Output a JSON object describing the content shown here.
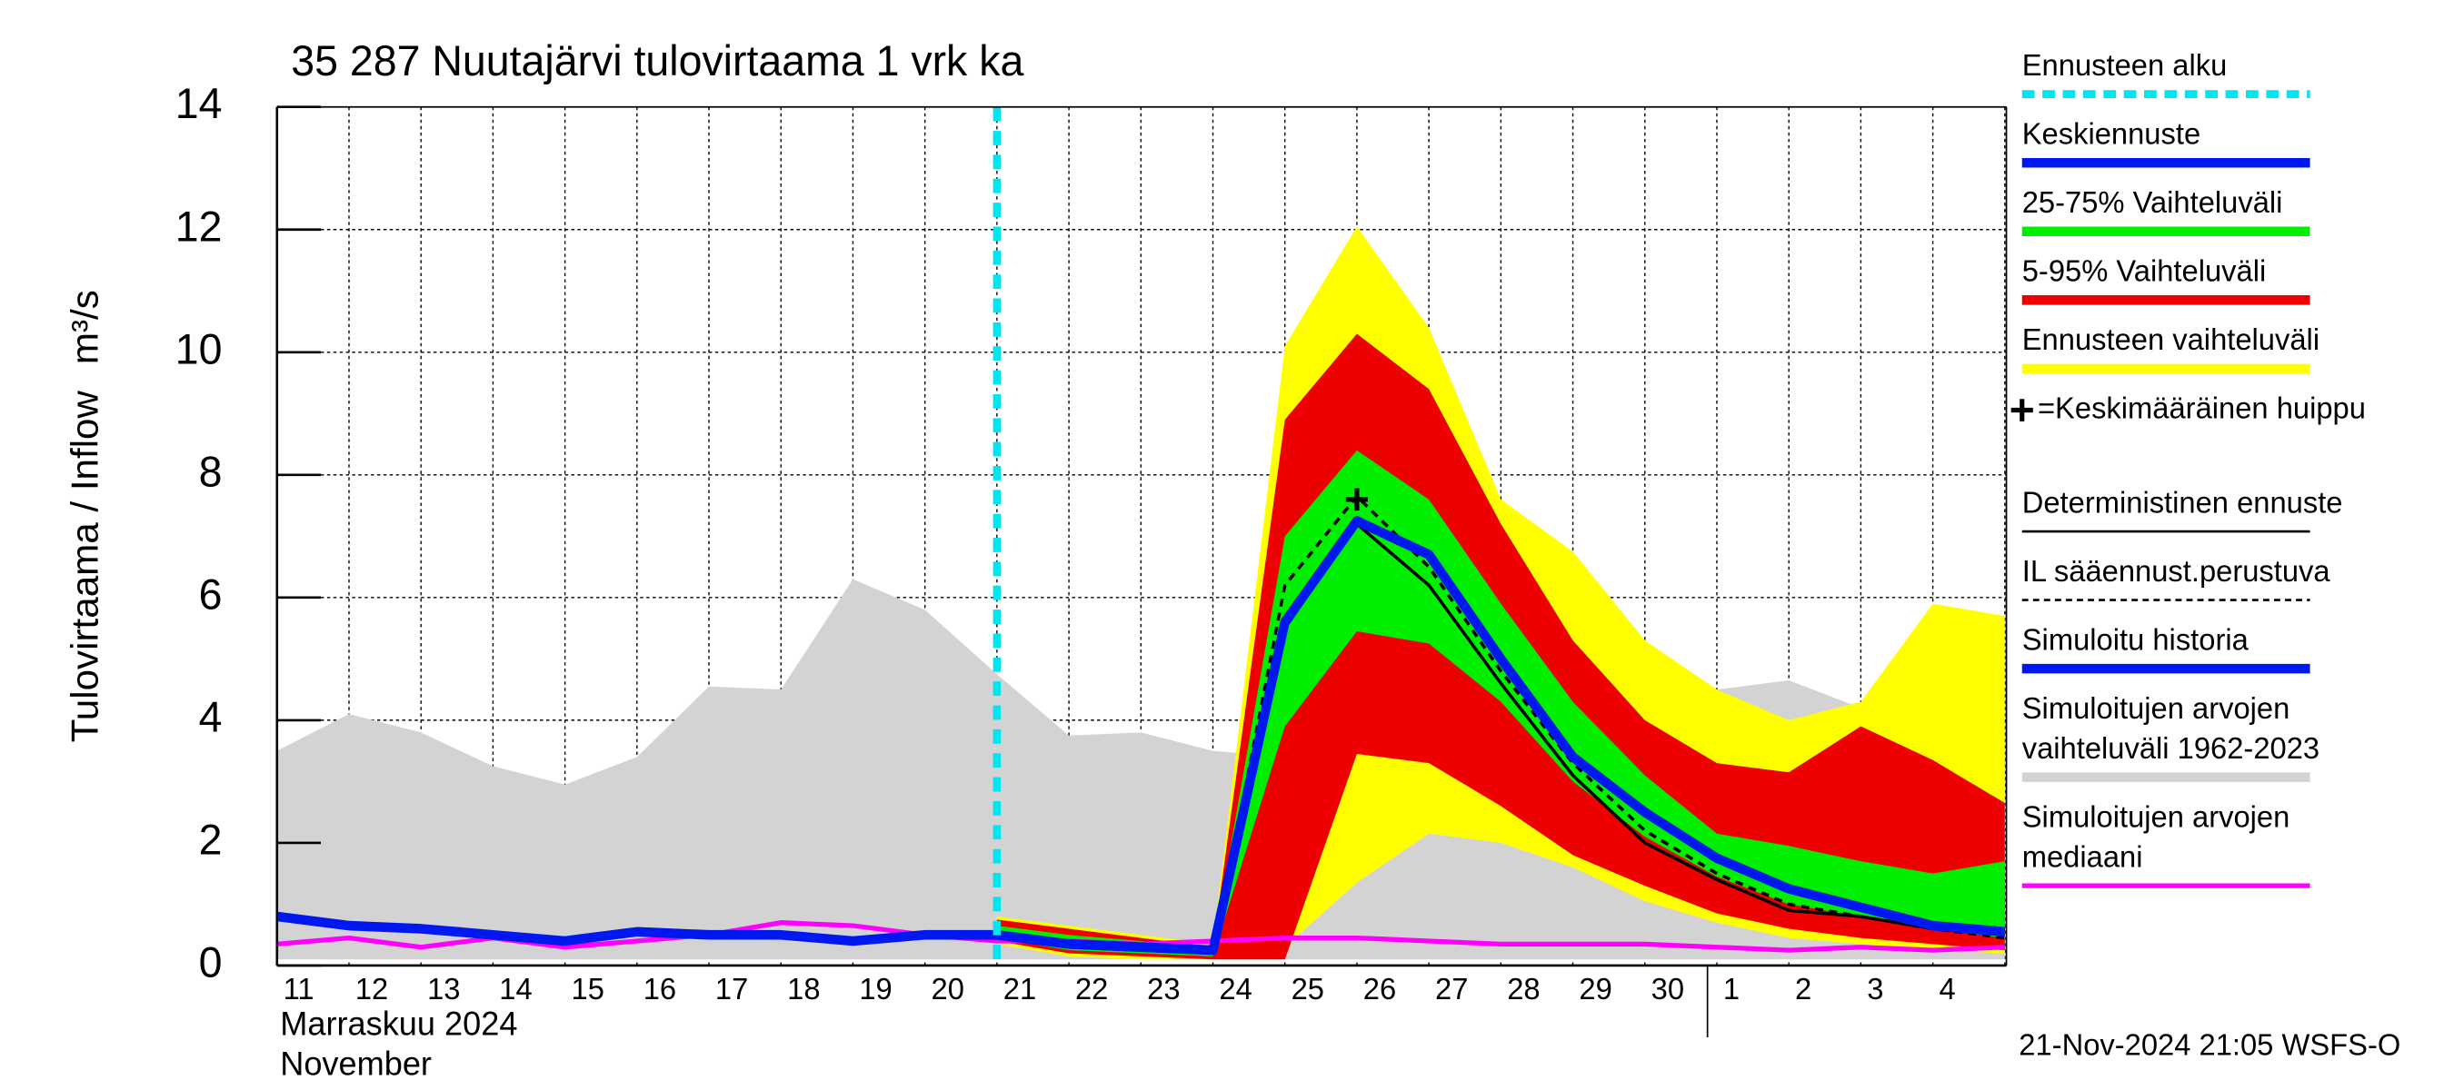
{
  "chart_data": {
    "type": "line",
    "title": "35 287 Nuutajärvi tulovirtaama 1 vrk ka",
    "y_label": "Tulovirtaama / Inflow",
    "y_unit": "m³/s",
    "x_label": [
      "Marraskuu 2024",
      "November"
    ],
    "footer": "21-Nov-2024 21:05 WSFS-O",
    "categories": [
      "11",
      "12",
      "13",
      "14",
      "15",
      "16",
      "17",
      "18",
      "19",
      "20",
      "21",
      "22",
      "23",
      "24",
      "25",
      "26",
      "27",
      "28",
      "29",
      "30",
      "1",
      "2",
      "3",
      "4",
      null
    ],
    "ylim": [
      0,
      14
    ],
    "yticks": [
      0,
      2,
      4,
      6,
      8,
      10,
      12,
      14
    ],
    "grid": true,
    "series": [
      {
        "name": "Ennusteen alku",
        "kind": "vline",
        "color": "#00e5ee",
        "dashed": true,
        "x": "21"
      },
      {
        "name": "Keskiennuste",
        "kind": "line",
        "color": "#0018f0",
        "width": 6,
        "values": [
          null,
          null,
          null,
          null,
          null,
          null,
          null,
          null,
          null,
          null,
          0.5,
          0.35,
          0.3,
          0.25,
          5.6,
          7.25,
          6.7,
          5.0,
          3.4,
          2.5,
          1.75,
          1.25,
          0.95,
          0.65,
          0.55
        ]
      },
      {
        "name": "25-75% Vaihteluväli",
        "kind": "band",
        "color": "#00ee00",
        "upper": [
          null,
          null,
          null,
          null,
          null,
          null,
          null,
          null,
          null,
          null,
          0.65,
          0.5,
          0.4,
          0.3,
          7.0,
          8.4,
          7.6,
          5.9,
          4.3,
          3.1,
          2.15,
          1.95,
          1.7,
          1.5,
          1.7
        ],
        "lower": [
          null,
          null,
          null,
          null,
          null,
          null,
          null,
          null,
          null,
          null,
          0.45,
          0.25,
          0.2,
          0.15,
          3.9,
          5.45,
          5.25,
          4.3,
          3.0,
          2.1,
          1.45,
          1.0,
          0.8,
          0.6,
          0.45
        ]
      },
      {
        "name": "5-95% Vaihteluväli",
        "kind": "band",
        "color": "#ee0000",
        "upper": [
          null,
          null,
          null,
          null,
          null,
          null,
          null,
          null,
          null,
          null,
          0.75,
          0.6,
          0.45,
          0.3,
          8.9,
          10.3,
          9.4,
          7.2,
          5.3,
          4.0,
          3.3,
          3.15,
          3.9,
          3.35,
          2.65
        ],
        "lower": [
          null,
          null,
          null,
          null,
          null,
          null,
          null,
          null,
          null,
          null,
          0.4,
          0.2,
          0.15,
          0.1,
          0.1,
          3.45,
          3.3,
          2.6,
          1.8,
          1.3,
          0.85,
          0.6,
          0.45,
          0.35,
          0.25
        ]
      },
      {
        "name": "Ennusteen vaihteluväli",
        "kind": "band",
        "color": "#ffff00",
        "upper": [
          null,
          null,
          null,
          null,
          null,
          null,
          null,
          null,
          null,
          null,
          0.8,
          0.65,
          0.5,
          0.35,
          10.1,
          12.05,
          10.4,
          7.6,
          6.75,
          5.3,
          4.5,
          4.0,
          4.3,
          5.9,
          5.7
        ],
        "lower": [
          null,
          null,
          null,
          null,
          null,
          null,
          null,
          null,
          null,
          null,
          0.35,
          0.15,
          0.1,
          0.1,
          0.3,
          1.35,
          2.15,
          2.0,
          1.6,
          1.05,
          0.7,
          0.45,
          0.35,
          0.25,
          0.2
        ]
      },
      {
        "name": "=Keskimääräinen huippu",
        "kind": "marker",
        "color": "#000000",
        "x": "26",
        "value": 7.6
      },
      {
        "name": "Deterministinen ennuste",
        "kind": "line",
        "color": "#000000",
        "width": 2,
        "values": [
          null,
          null,
          null,
          null,
          null,
          null,
          null,
          null,
          null,
          null,
          0.45,
          0.3,
          0.25,
          0.2,
          5.5,
          7.2,
          6.2,
          4.6,
          3.1,
          2.0,
          1.4,
          0.9,
          0.8,
          0.6,
          0.5
        ]
      },
      {
        "name": "IL sääennust.perustuva",
        "kind": "line",
        "color": "#000000",
        "width": 2,
        "dashed": true,
        "values": [
          null,
          null,
          null,
          null,
          null,
          null,
          null,
          null,
          null,
          null,
          0.45,
          0.3,
          0.25,
          0.2,
          6.2,
          7.65,
          6.5,
          4.8,
          3.3,
          2.2,
          1.5,
          1.0,
          0.8,
          0.6,
          0.45
        ]
      },
      {
        "name": "Simuloitu historia",
        "kind": "line",
        "color": "#0018f0",
        "width": 6,
        "values": [
          0.8,
          0.65,
          0.6,
          0.5,
          0.4,
          0.55,
          0.5,
          0.5,
          0.4,
          0.5,
          0.5,
          null,
          null,
          null,
          null,
          null,
          null,
          null,
          null,
          null,
          null,
          null,
          null,
          null,
          null
        ]
      },
      {
        "name": "Simuloitujen arvojen vaihteluväli 1962-2023",
        "kind": "band",
        "color": "#d3d3d3",
        "upper": [
          3.5,
          4.1,
          3.8,
          3.25,
          2.95,
          3.4,
          4.55,
          4.5,
          6.3,
          5.8,
          4.75,
          3.75,
          3.8,
          3.5,
          3.4,
          3.2,
          3.45,
          2.75,
          3.7,
          3.1,
          4.5,
          4.65,
          4.2,
          3.75,
          3.55
        ],
        "lower": [
          0.1,
          0.1,
          0.1,
          0.1,
          0.1,
          0.1,
          0.1,
          0.1,
          0.1,
          0.1,
          0.1,
          0.1,
          0.1,
          0.1,
          0.1,
          0.1,
          0.1,
          0.1,
          0.1,
          0.1,
          0.1,
          0.1,
          0.1,
          0.1,
          0.1
        ]
      },
      {
        "name": "Simuloitujen arvojen mediaani",
        "kind": "line",
        "color": "#ff00ff",
        "width": 3,
        "values": [
          0.35,
          0.45,
          0.3,
          0.45,
          0.3,
          0.4,
          0.5,
          0.7,
          0.65,
          0.5,
          0.4,
          0.4,
          0.35,
          0.4,
          0.45,
          0.45,
          0.4,
          0.35,
          0.35,
          0.35,
          0.3,
          0.25,
          0.3,
          0.25,
          0.3
        ]
      }
    ],
    "draw_order": [
      9,
      4,
      3,
      2,
      10,
      6,
      7,
      1,
      8,
      0,
      5
    ]
  }
}
